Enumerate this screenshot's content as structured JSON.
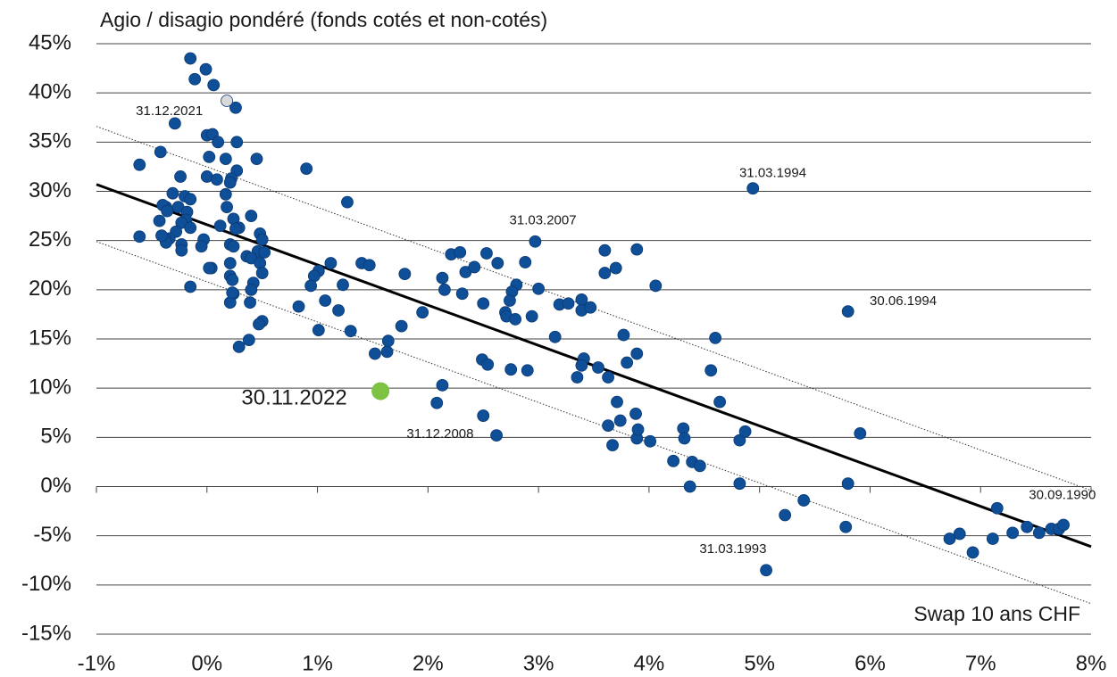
{
  "chart_data": {
    "type": "scatter",
    "title": "Agio / disagio pondéré (fonds cotés et non-cotés)",
    "x_label": "Swap 10 ans CHF",
    "xlim": [
      -1,
      8
    ],
    "ylim": [
      -15,
      45
    ],
    "xticks": [
      {
        "value": -1,
        "label": "-1%"
      },
      {
        "value": 0,
        "label": "0%"
      },
      {
        "value": 1,
        "label": "1%"
      },
      {
        "value": 2,
        "label": "2%"
      },
      {
        "value": 3,
        "label": "3%"
      },
      {
        "value": 4,
        "label": "4%"
      },
      {
        "value": 5,
        "label": "5%"
      },
      {
        "value": 6,
        "label": "6%"
      },
      {
        "value": 7,
        "label": "7%"
      },
      {
        "value": 8,
        "label": "8%"
      }
    ],
    "yticks": [
      {
        "value": -15,
        "label": "-15%"
      },
      {
        "value": -10,
        "label": "-10%"
      },
      {
        "value": -5,
        "label": "-5%"
      },
      {
        "value": 0,
        "label": "0%"
      },
      {
        "value": 5,
        "label": "5%"
      },
      {
        "value": 10,
        "label": "10%"
      },
      {
        "value": 15,
        "label": "15%"
      },
      {
        "value": 20,
        "label": "20%"
      },
      {
        "value": 25,
        "label": "25%"
      },
      {
        "value": 30,
        "label": "30%"
      },
      {
        "value": 35,
        "label": "35%"
      },
      {
        "value": 40,
        "label": "40%"
      },
      {
        "value": 45,
        "label": "45%"
      }
    ],
    "grid": true,
    "series": [
      {
        "color": "#0f4f97",
        "x": [
          -0.15,
          -0.01,
          -0.11,
          0.06,
          0.26,
          -0.29,
          0.0,
          0.05,
          0.1,
          0.27,
          0.02,
          0.17,
          0.45,
          0.0,
          0.09,
          0.27,
          0.22,
          0.9,
          -0.61,
          -0.42,
          -0.24,
          -0.2,
          -0.31,
          -0.37,
          -0.15,
          -0.26,
          -0.4,
          -0.36,
          -0.18,
          -0.19,
          -0.43,
          -0.23,
          -0.15,
          -0.28,
          0.21,
          0.17,
          0.18,
          0.24,
          0.12,
          0.29,
          0.48,
          0.4,
          0.46,
          0.52,
          0.5,
          0.26,
          0.21,
          0.24,
          -0.61,
          -0.34,
          -0.38,
          -0.37,
          -0.41,
          -0.23,
          -0.23,
          -0.03,
          -0.05,
          0.04,
          0.02,
          0.21,
          0.36,
          0.4,
          0.48,
          0.5,
          0.42,
          0.4,
          0.21,
          0.23,
          0.24,
          0.21,
          0.23,
          -0.15,
          0.39,
          0.5,
          0.47,
          0.38,
          0.29,
          1.27,
          1.12,
          1.01,
          0.97,
          0.94,
          0.83,
          1.07,
          1.19,
          1.23,
          1.01,
          1.3,
          1.4,
          1.47,
          1.52,
          1.63,
          1.64,
          1.76,
          1.79,
          1.95,
          2.13,
          2.15,
          2.21,
          2.29,
          2.34,
          2.31,
          2.42,
          2.53,
          2.63,
          2.5,
          2.49,
          2.54,
          2.08,
          2.13,
          2.5,
          2.62,
          2.97,
          2.88,
          2.8,
          2.76,
          2.74,
          2.7,
          2.71,
          2.79,
          2.94,
          3.0,
          2.75,
          2.9,
          3.15,
          3.19,
          3.27,
          3.39,
          3.39,
          3.47,
          3.41,
          3.39,
          3.35,
          3.54,
          3.63,
          3.6,
          3.6,
          3.7,
          3.89,
          4.06,
          3.77,
          3.8,
          3.71,
          3.74,
          3.63,
          3.89,
          3.88,
          3.9,
          4.01,
          3.89,
          3.67,
          4.22,
          4.31,
          4.32,
          4.37,
          4.39,
          4.46,
          4.56,
          4.6,
          4.64,
          4.82,
          4.87,
          4.82,
          4.94,
          5.06,
          5.23,
          5.4,
          5.78,
          5.8,
          5.8,
          5.91,
          6.72,
          6.81,
          6.93,
          7.11,
          7.15,
          7.29,
          7.42,
          7.53,
          7.64,
          7.71,
          7.75
        ],
        "values": [
          43.5,
          42.4,
          41.4,
          40.8,
          38.5,
          36.9,
          35.7,
          35.8,
          35.0,
          35.0,
          33.5,
          33.3,
          33.3,
          31.5,
          31.2,
          32.1,
          31.3,
          32.3,
          32.7,
          34.0,
          31.5,
          29.5,
          29.8,
          28.4,
          29.2,
          28.4,
          28.6,
          28.0,
          27.9,
          27.1,
          27.0,
          26.8,
          26.3,
          25.9,
          30.9,
          29.7,
          28.4,
          27.2,
          26.5,
          26.3,
          25.7,
          27.5,
          23.9,
          23.8,
          25.1,
          26.2,
          24.6,
          24.4,
          25.4,
          25.2,
          25.2,
          24.8,
          25.5,
          24.6,
          24.0,
          25.1,
          24.4,
          22.2,
          22.2,
          22.7,
          23.4,
          23.2,
          22.7,
          21.7,
          20.7,
          20.0,
          21.4,
          21.0,
          19.6,
          18.7,
          19.7,
          20.3,
          18.7,
          16.8,
          16.5,
          14.9,
          14.2,
          28.9,
          22.7,
          21.9,
          21.4,
          20.4,
          18.3,
          18.9,
          17.9,
          20.5,
          15.9,
          15.8,
          22.7,
          22.5,
          13.5,
          13.7,
          14.8,
          16.3,
          21.6,
          17.7,
          21.2,
          20.0,
          23.6,
          23.8,
          21.8,
          19.6,
          22.3,
          23.7,
          22.7,
          18.6,
          12.9,
          12.4,
          8.5,
          10.3,
          7.2,
          5.2,
          24.9,
          22.8,
          20.5,
          19.8,
          18.9,
          17.7,
          17.3,
          17.0,
          17.3,
          20.1,
          11.9,
          11.8,
          15.2,
          18.5,
          18.6,
          19.0,
          17.9,
          18.2,
          13.0,
          12.3,
          11.1,
          12.1,
          11.1,
          24.0,
          21.7,
          22.2,
          24.1,
          20.4,
          15.4,
          12.6,
          8.6,
          6.7,
          6.2,
          4.9,
          7.4,
          5.8,
          4.6,
          13.5,
          4.2,
          2.6,
          5.9,
          4.9,
          0.0,
          2.5,
          2.1,
          11.8,
          15.1,
          8.6,
          4.7,
          5.6,
          0.3,
          30.3,
          -8.5,
          -2.9,
          -1.4,
          -4.1,
          17.8,
          0.3,
          5.4,
          -5.3,
          -4.8,
          -6.7,
          -5.3,
          -2.2,
          -4.7,
          -4.1,
          -4.7,
          -4.3,
          -4.3,
          -3.9
        ]
      },
      {
        "color": "#d9d9d9",
        "x": [
          0.18
        ],
        "values": [
          39.2
        ]
      },
      {
        "color": "#7dc242",
        "x": [
          1.57
        ],
        "values": [
          9.7
        ],
        "highlight": true
      }
    ],
    "trend_lines": [
      {
        "x": [
          -1,
          8
        ],
        "values": [
          30.7,
          -6.1
        ],
        "color": "#000000",
        "style": "solid"
      },
      {
        "x": [
          -1,
          8
        ],
        "values": [
          36.6,
          -0.4
        ],
        "color": "#333333",
        "style": "dotted"
      },
      {
        "x": [
          -1,
          8
        ],
        "values": [
          24.9,
          -11.9
        ],
        "color": "#333333",
        "style": "dotted"
      }
    ],
    "annotations": [
      {
        "text": "31.12.2021",
        "x": -0.34,
        "y": 38.1
      },
      {
        "text": "31.03.1994",
        "x": 5.12,
        "y": 31.8
      },
      {
        "text": "31.03.2007",
        "x": 3.04,
        "y": 27.0
      },
      {
        "text": "30.06.1994",
        "x": 6.3,
        "y": 18.8
      },
      {
        "text": "30.11.2022",
        "x": 0.79,
        "y": 8.9,
        "emphasis": true
      },
      {
        "text": "31.12.2008",
        "x": 2.11,
        "y": 5.3
      },
      {
        "text": "30.09.1990",
        "x": 7.74,
        "y": -0.9
      },
      {
        "text": "31.03.1993",
        "x": 4.76,
        "y": -6.4
      }
    ]
  }
}
